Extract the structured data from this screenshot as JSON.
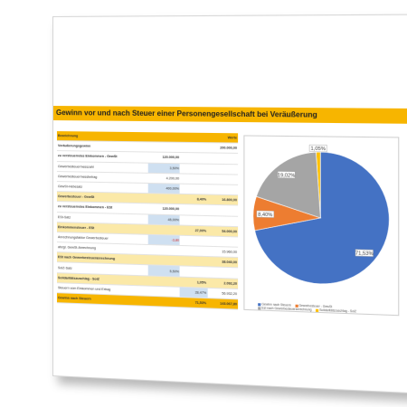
{
  "title": "Gewinn vor und nach Steuer einer Personengesellschaft bei Veräußerung",
  "table": {
    "header": {
      "label": "Bezeichnung",
      "value": "Werte"
    },
    "rows": [
      {
        "label": "Veräußerungsgewinn",
        "c1": "",
        "c2": "",
        "c3": "200.000,00",
        "style": "bold"
      },
      {
        "label": "zu versteuerndes Einkommen - GewSt",
        "c1": "120.000,00",
        "c2": "",
        "c3": "",
        "style": "bold"
      },
      {
        "label": "Gewerbesteuermesszahl",
        "c1": "3,50%",
        "c2": "",
        "c3": "",
        "blue": "c1"
      },
      {
        "label": "Gewerbesteuermessbetrag",
        "c1": "4.200,00",
        "c2": "",
        "c3": ""
      },
      {
        "label": "GewSt-Hebesatz",
        "c1": "400,00%",
        "c2": "",
        "c3": "",
        "blue": "c1"
      },
      {
        "label": "Gewerbesteuer - GewSt",
        "c1": "",
        "c2": "8,40%",
        "c3": "16.800,00",
        "style": "bold yellow"
      },
      {
        "label": "zu versteuerndes Einkommen - ESt",
        "c1": "120.000,00",
        "c2": "",
        "c3": "",
        "style": "bold"
      },
      {
        "label": "ESt-Satz",
        "c1": "45,00%",
        "c2": "",
        "c3": "",
        "blue": "c1"
      },
      {
        "label": "Einkommensteuer - ESt",
        "c1": "",
        "c2": "27,00%",
        "c3": "54.000,00",
        "style": "bold yellow"
      },
      {
        "label": "Anrechnungsfaktor Gewerbesteuer",
        "c1": "-3,80",
        "c2": "",
        "c3": "",
        "blue": "c1",
        "red": "c1"
      },
      {
        "label": "abzgl. GewSt-Anrechnung",
        "c1": "",
        "c2": "",
        "c3": "15.960,00"
      },
      {
        "label": "ESt nach Gewerbesteueranrechnung",
        "c1": "",
        "c2": "",
        "c3": "38.040,00",
        "style": "bold yellow"
      },
      {
        "label": "SolZ-Satz",
        "c1": "5,50%",
        "c2": "",
        "c3": "",
        "blue": "c1"
      },
      {
        "label": "Solidaritätszuschlag - SolZ",
        "c1": "",
        "c2": "1,05%",
        "c3": "2.092,20",
        "style": "bold yellow"
      },
      {
        "label": "Steuern vom Einkommen und Ertrag",
        "c1": "",
        "c2": "28,47%",
        "c3": "56.932,20",
        "blue": "c2"
      }
    ],
    "total": {
      "label": "Gewinn nach Steuern",
      "c1": "",
      "c2": "71,53%",
      "c3": "143.067,80"
    }
  },
  "chart_data": {
    "type": "pie",
    "slices": [
      {
        "label": "Gewinn nach Steuern",
        "value": 71.53,
        "data_label": "71,53%",
        "color": "#4472c4"
      },
      {
        "label": "Gewerbesteuer - GewSt",
        "value": 8.4,
        "data_label": "8,40%",
        "color": "#ed7d31"
      },
      {
        "label": "Est nach Gewerbesteueranrechnung",
        "value": 19.02,
        "data_label": "19,02%",
        "color": "#a5a5a5"
      },
      {
        "label": "Solidaritätszuschlag - SolZ",
        "value": 1.05,
        "data_label": "1,05%",
        "color": "#ffc000"
      }
    ],
    "legend_position": "bottom"
  }
}
